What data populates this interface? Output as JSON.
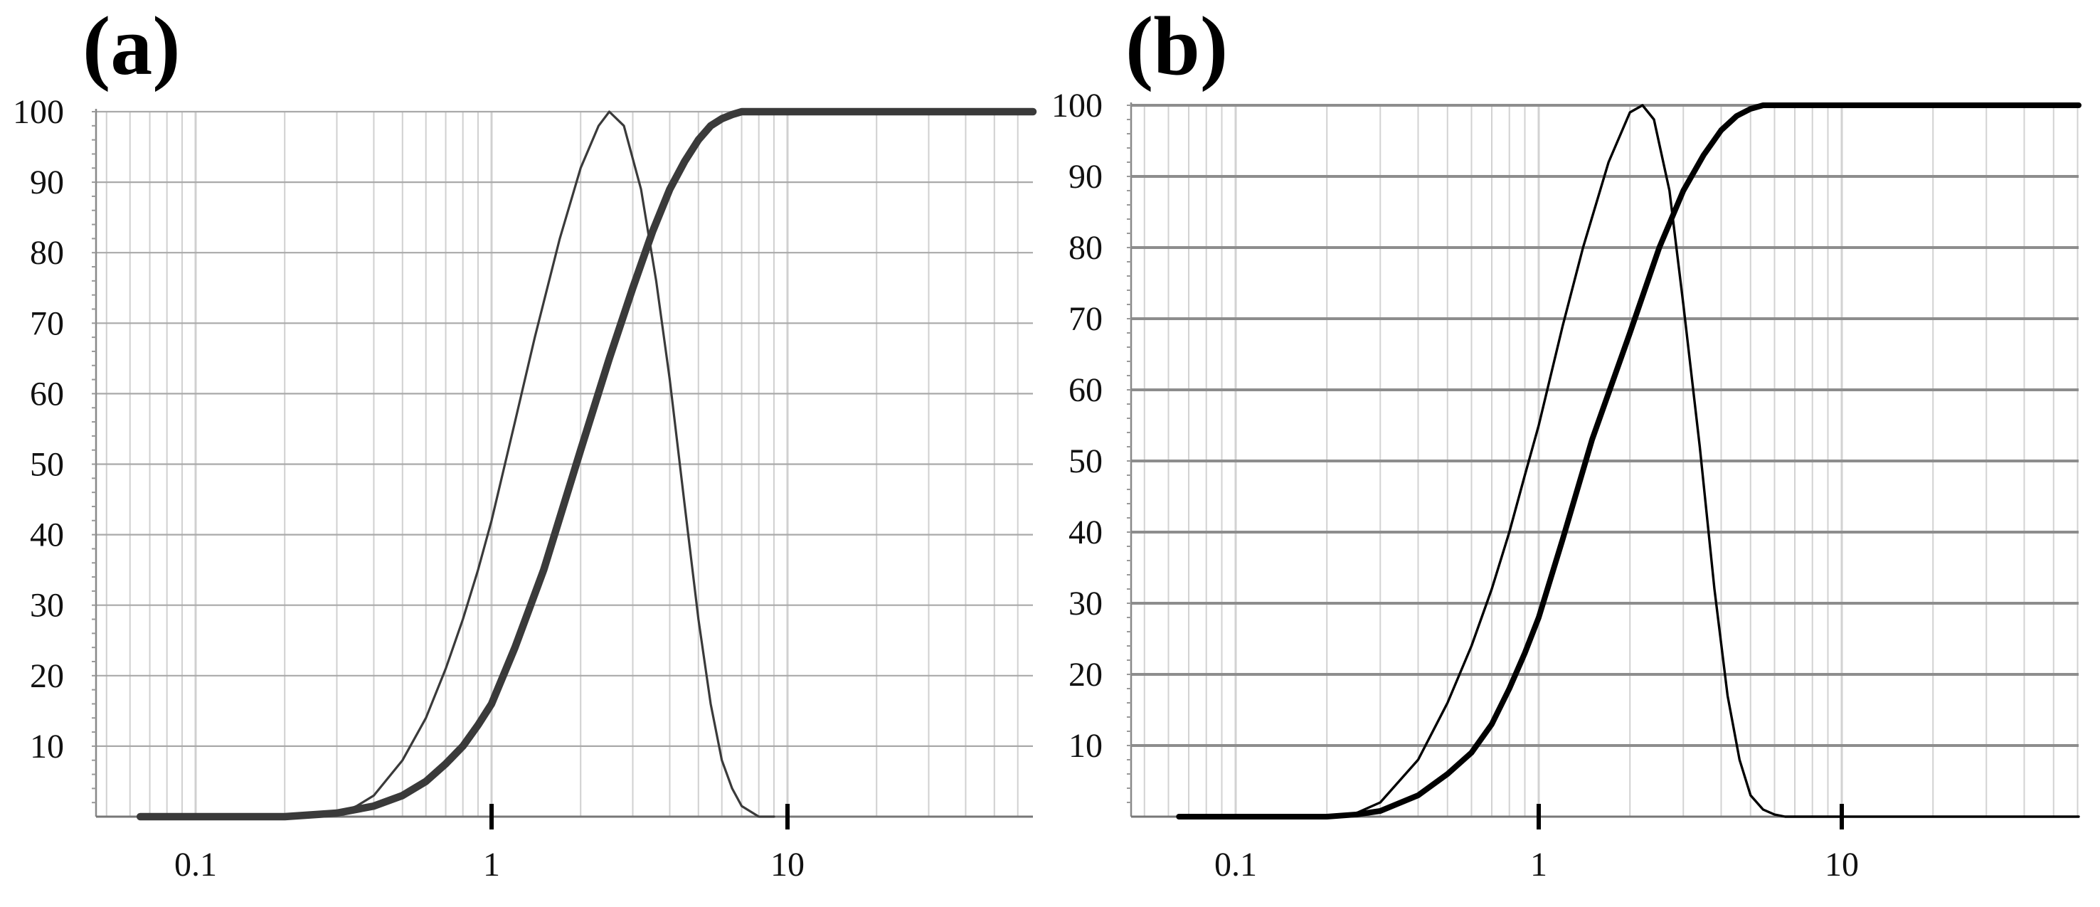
{
  "figure": {
    "panel_a_label": "(a)",
    "panel_b_label": "(b)"
  },
  "chart_data": [
    {
      "type": "line",
      "panel": "(a)",
      "title": "",
      "xlabel": "",
      "ylabel": "",
      "x_scale": "log",
      "xlim": [
        0.05,
        70
      ],
      "ylim": [
        0,
        100
      ],
      "x_ticks": [
        0.1,
        1,
        10
      ],
      "x_tick_labels": [
        "0.1",
        "1",
        "10"
      ],
      "y_ticks": [
        10,
        20,
        30,
        40,
        50,
        60,
        70,
        80,
        90,
        100
      ],
      "y_tick_labels": [
        "10",
        "20",
        "30",
        "40",
        "50",
        "60",
        "70",
        "80",
        "90",
        "100"
      ],
      "grid": true,
      "legend": "none",
      "series": [
        {
          "style": "thin",
          "color": "#3a3a3a",
          "x": [
            0.065,
            0.1,
            0.2,
            0.3,
            0.35,
            0.4,
            0.5,
            0.6,
            0.7,
            0.8,
            0.9,
            1.0,
            1.2,
            1.4,
            1.7,
            2.0,
            2.3,
            2.5,
            2.8,
            3.2,
            3.6,
            4.0,
            4.5,
            5.0,
            5.5,
            6.0,
            6.5,
            7.0,
            8.0,
            9.0
          ],
          "y": [
            0,
            0,
            0,
            0.3,
            1.5,
            3,
            8,
            14,
            21,
            28,
            35,
            42,
            56,
            68,
            82,
            92,
            98,
            100,
            98,
            89,
            76,
            62,
            44,
            28,
            16,
            8,
            4,
            1.5,
            0,
            0
          ]
        },
        {
          "style": "thick",
          "color": "#3a3a3a",
          "x": [
            0.065,
            0.1,
            0.2,
            0.3,
            0.4,
            0.5,
            0.6,
            0.7,
            0.8,
            0.9,
            1.0,
            1.2,
            1.5,
            2.0,
            2.5,
            3.0,
            3.5,
            4.0,
            4.5,
            5.0,
            5.5,
            6.0,
            6.5,
            7.0,
            8.0,
            10,
            20,
            70
          ],
          "y": [
            0,
            0,
            0,
            0.5,
            1.5,
            3,
            5,
            7.5,
            10,
            13,
            16,
            24,
            35,
            52,
            65,
            75,
            83,
            89,
            93,
            96,
            98,
            99,
            99.6,
            100,
            100,
            100,
            100,
            100
          ]
        }
      ]
    },
    {
      "type": "line",
      "panel": "(b)",
      "title": "",
      "xlabel": "",
      "ylabel": "",
      "x_scale": "log",
      "xlim": [
        0.05,
        70
      ],
      "ylim": [
        0,
        100
      ],
      "x_ticks": [
        0.1,
        1,
        10
      ],
      "x_tick_labels": [
        "0.1",
        "1",
        "10"
      ],
      "y_ticks": [
        10,
        20,
        30,
        40,
        50,
        60,
        70,
        80,
        90,
        100
      ],
      "y_tick_labels": [
        "10",
        "20",
        "30",
        "40",
        "50",
        "60",
        "70",
        "80",
        "90",
        "100"
      ],
      "grid": true,
      "legend": "none",
      "series": [
        {
          "style": "thin",
          "color": "#000000",
          "x": [
            0.065,
            0.1,
            0.2,
            0.25,
            0.3,
            0.4,
            0.5,
            0.6,
            0.7,
            0.8,
            0.9,
            1.0,
            1.2,
            1.4,
            1.7,
            2.0,
            2.2,
            2.4,
            2.7,
            3.0,
            3.4,
            3.8,
            4.2,
            4.6,
            5.0,
            5.5,
            6.0,
            6.5,
            7.0,
            70
          ],
          "y": [
            0,
            0,
            0,
            0.5,
            2,
            8,
            16,
            24,
            32,
            40,
            48,
            55,
            69,
            80,
            92,
            99,
            100,
            98,
            88,
            72,
            52,
            32,
            17,
            8,
            3,
            1,
            0.3,
            0,
            0,
            0
          ]
        },
        {
          "style": "thick",
          "color": "#000000",
          "x": [
            0.065,
            0.1,
            0.2,
            0.25,
            0.3,
            0.4,
            0.5,
            0.6,
            0.7,
            0.8,
            0.9,
            1.0,
            1.2,
            1.5,
            2.0,
            2.5,
            3.0,
            3.5,
            4.0,
            4.5,
            5.0,
            5.5,
            6.0,
            70
          ],
          "y": [
            0,
            0,
            0,
            0.3,
            0.8,
            3,
            6,
            9,
            13,
            18,
            23,
            28,
            39,
            53,
            68,
            80,
            88,
            93,
            96.5,
            98.5,
            99.5,
            100,
            100,
            100
          ]
        }
      ]
    }
  ]
}
